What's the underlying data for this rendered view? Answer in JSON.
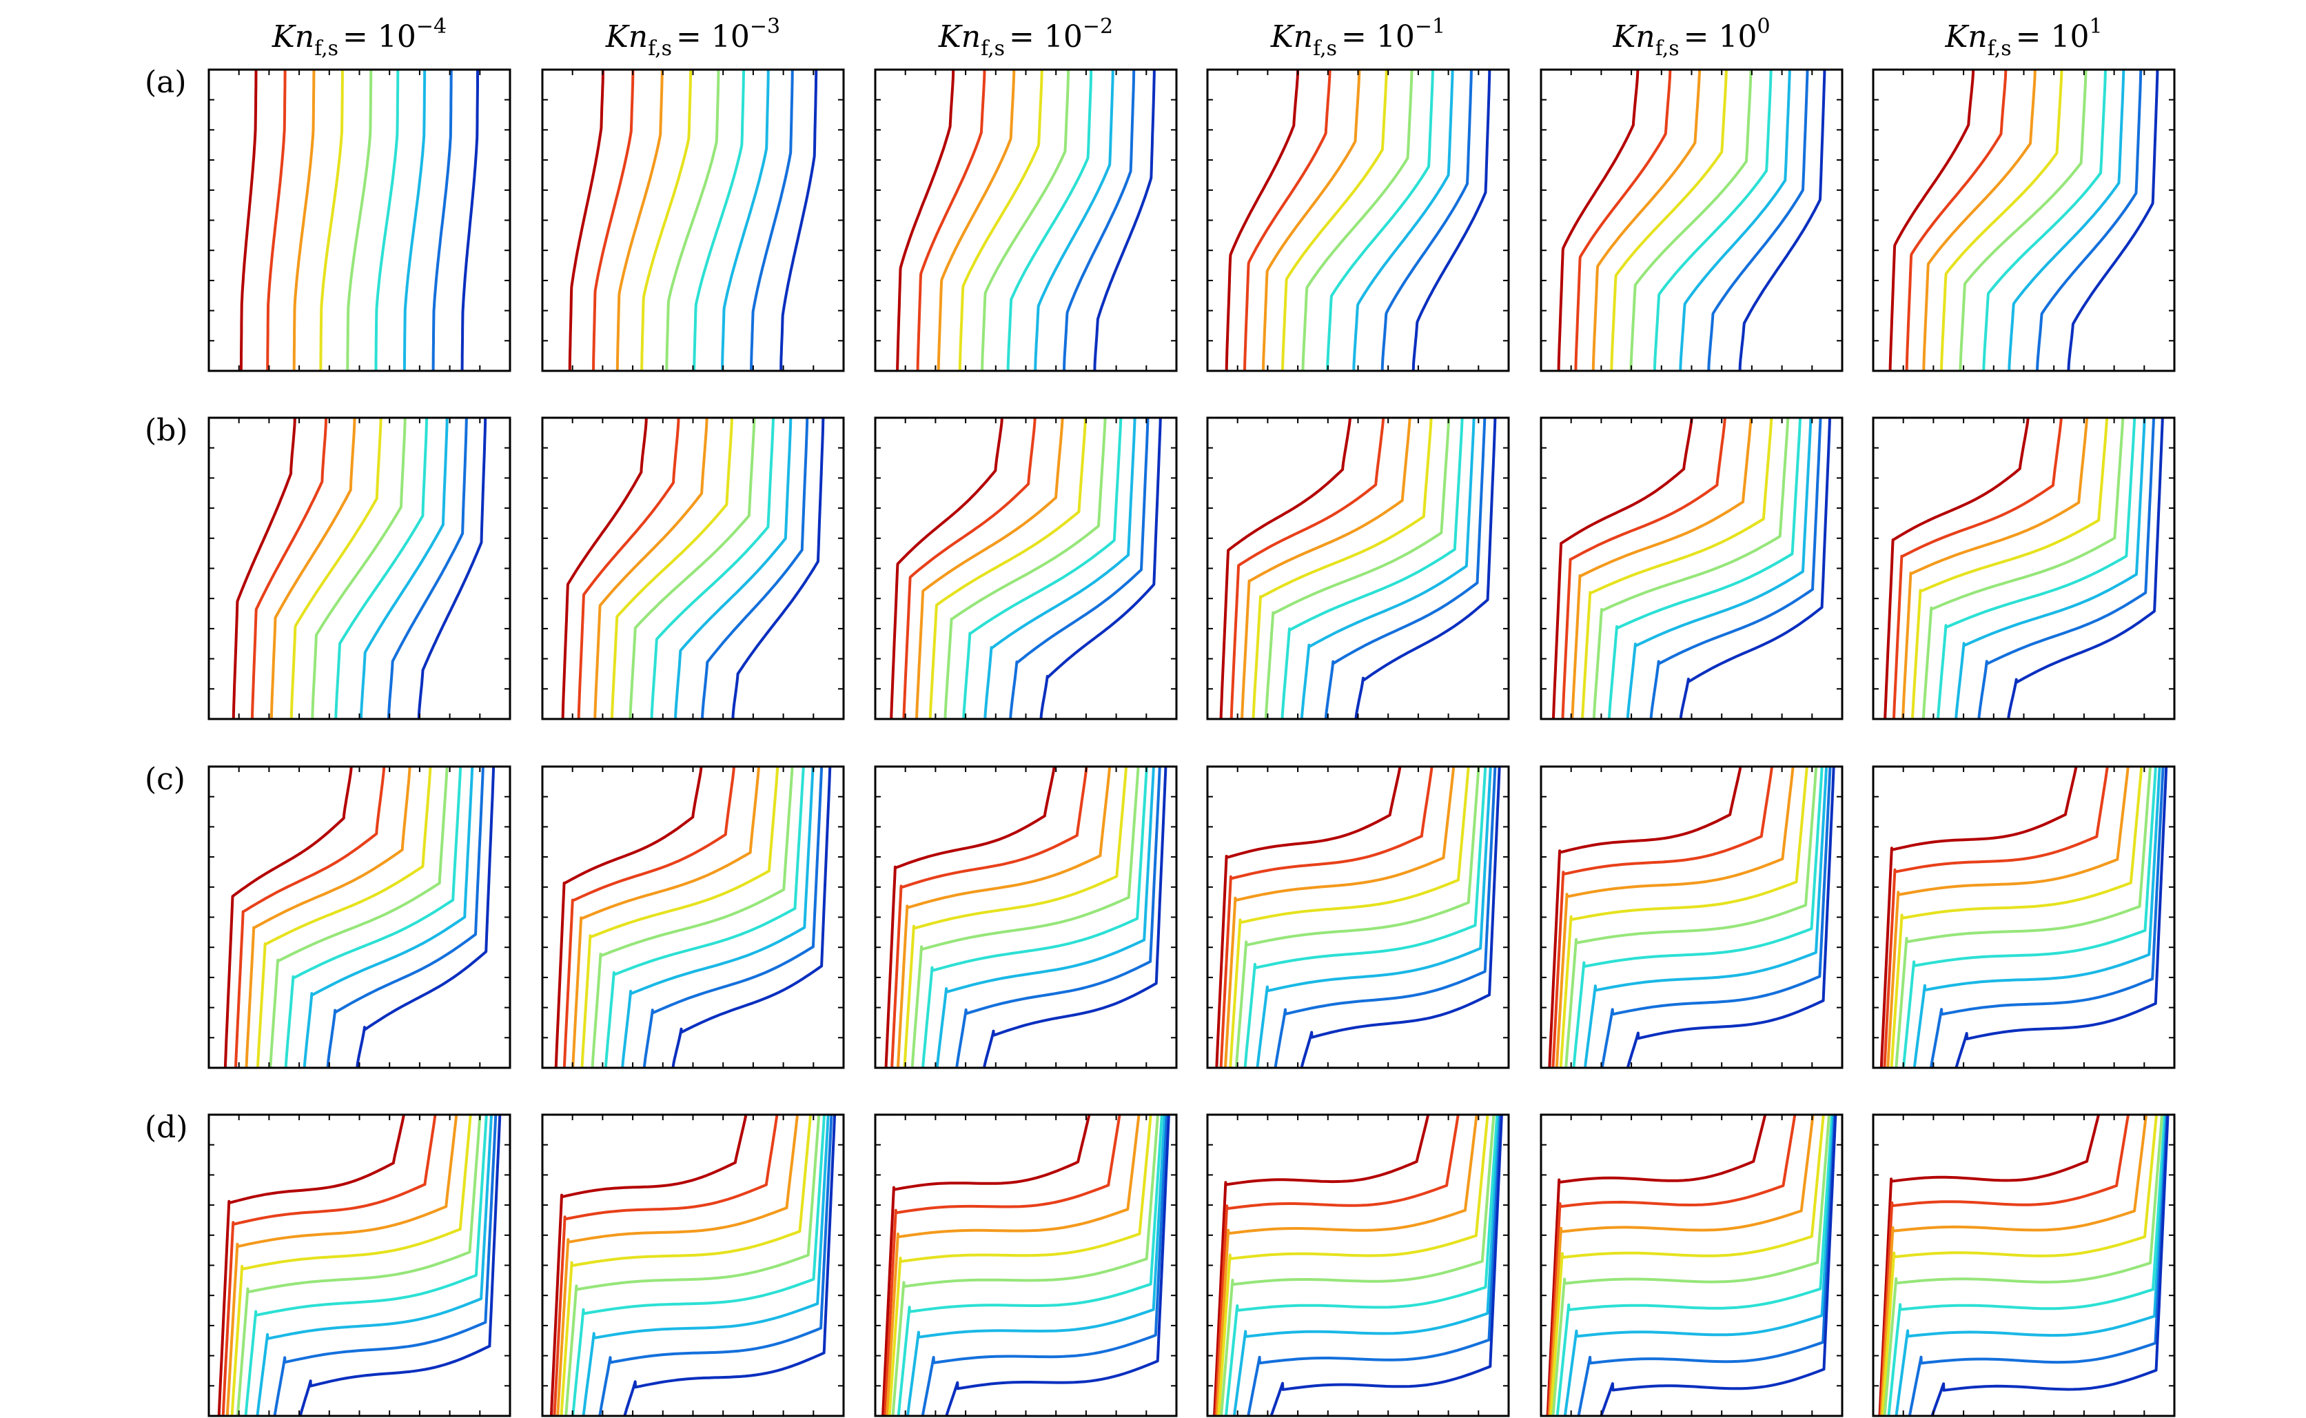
{
  "figure": {
    "columns": [
      {
        "symbol": "Kn",
        "subscript": "f,s",
        "eq": "= 10",
        "exponent": "−4"
      },
      {
        "symbol": "Kn",
        "subscript": "f,s",
        "eq": "= 10",
        "exponent": "−3"
      },
      {
        "symbol": "Kn",
        "subscript": "f,s",
        "eq": "= 10",
        "exponent": "−2"
      },
      {
        "symbol": "Kn",
        "subscript": "f,s",
        "eq": "= 10",
        "exponent": "−1"
      },
      {
        "symbol": "Kn",
        "subscript": "f,s",
        "eq": "= 10",
        "exponent": "0"
      },
      {
        "symbol": "Kn",
        "subscript": "f,s",
        "eq": "= 10",
        "exponent": "1"
      }
    ],
    "rows": [
      {
        "label": "(a)"
      },
      {
        "label": "(b)"
      },
      {
        "label": "(c)"
      },
      {
        "label": "(d)"
      }
    ],
    "contour_colors": [
      "#b40000",
      "#e8401a",
      "#f49a1c",
      "#e6e21e",
      "#96e67a",
      "#2ce0d4",
      "#1ab8e6",
      "#1470dc",
      "#0a2fbf"
    ]
  }
}
